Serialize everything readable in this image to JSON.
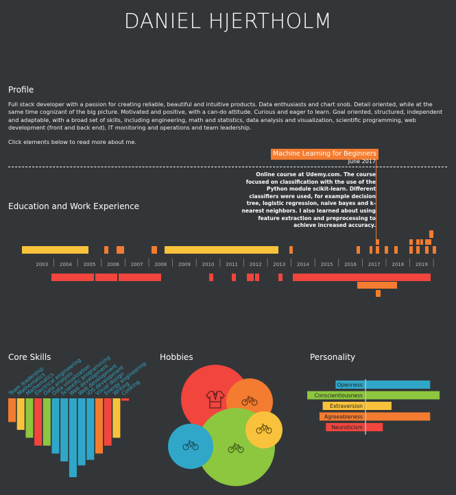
{
  "name": "DANIEL HJERTHOLM",
  "profile": {
    "heading": "Profile",
    "text": "Full stack developer with a passion for creating reliable, beautiful and intuitive products. Data enthusiasts and chart snob. Detail oriented, while at the same time cognizant of the big picture. Motivated and positive, with a can-do attitude. Curious and eager to learn. Goal oriented, structured, independent and adaptable, with a broad set of skills, including engineering, math and statistics, data analysis and visualization, scientific programming, web development (front and back end), IT monitoring and operations and team leadership.",
    "hint": "Click elements below to read more about me."
  },
  "tooltip": {
    "title": "Machine Learning for Beginners",
    "date": "June 2017",
    "description": "Online course at Udemy.com. The course focused on classification with the use of the Python module scikit-learn. Different classifiers were used, for example decision tree, logistic regression, naive bayes and k-nearest neighbors. I also learned about using feature extraction and preprocessing to achieve increased accuracy."
  },
  "education": {
    "heading": "Education and Work Experience",
    "years": [
      "2003",
      "2004",
      "2005",
      "2006",
      "2007",
      "2008",
      "2009",
      "2010",
      "2011",
      "2012",
      "2013",
      "2014",
      "2015",
      "2016",
      "2017",
      "2018",
      "2019"
    ],
    "colors": {
      "education": "#f9c23c",
      "courses": "#f47c30",
      "work": "#f1453d"
    }
  },
  "core_skills": {
    "heading": "Core Skills",
    "skills": [
      {
        "name": "Team leadership",
        "level": 3,
        "color": "#f47c30"
      },
      {
        "name": "Mathematics",
        "level": 4,
        "color": "#f9c23c"
      },
      {
        "name": "Mathematics",
        "level": 5,
        "color": "#8dc63f"
      },
      {
        "name": "Electrical engineering",
        "level": 6,
        "color": "#f1453d"
      },
      {
        "name": "Data analysis",
        "level": 6,
        "color": "#8dc63f"
      },
      {
        "name": "Data visualization",
        "level": 7,
        "color": "#30a7c9"
      },
      {
        "name": "Scientific programming",
        "level": 8,
        "color": "#30a7c9"
      },
      {
        "name": "Web development",
        "level": 10,
        "color": "#30a7c9"
      },
      {
        "name": "Web development",
        "level": 8.5,
        "color": "#30a7c9"
      },
      {
        "name": "iOS development",
        "level": 7.8,
        "color": "#30a7c9"
      },
      {
        "name": "Visual design",
        "level": 7,
        "color": "#f47c30"
      },
      {
        "name": "Energy engineering",
        "level": 6,
        "color": "#f1453d"
      },
      {
        "name": "Writing",
        "level": 5,
        "color": "#f9c23c"
      },
      {
        "name": "Cooking",
        "level": 0.3,
        "color": "#f1453d"
      }
    ]
  },
  "hobbies": {
    "heading": "Hobbies",
    "items": [
      {
        "name": "judo-icon",
        "color": "#f1453d"
      },
      {
        "name": "bicycle-icon",
        "color": "#f47c30"
      },
      {
        "name": "bicycle-icon",
        "color": "#f9c23c"
      },
      {
        "name": "bicycle-icon",
        "color": "#30a7c9"
      },
      {
        "name": "bicycle-icon",
        "color": "#8dc63f"
      }
    ]
  },
  "personality": {
    "heading": "Personality",
    "traits": [
      {
        "name": "Openness",
        "value": 0.82,
        "color": "#30a7c9"
      },
      {
        "name": "Conscientiousness",
        "value": 0.94,
        "color": "#8dc63f"
      },
      {
        "name": "Extraversion",
        "value": 0.33,
        "color": "#f9c23c"
      },
      {
        "name": "Agreeableness",
        "value": 0.82,
        "color": "#f47c30"
      },
      {
        "name": "Neuroticism",
        "value": 0.22,
        "color": "#f1453d"
      }
    ]
  }
}
